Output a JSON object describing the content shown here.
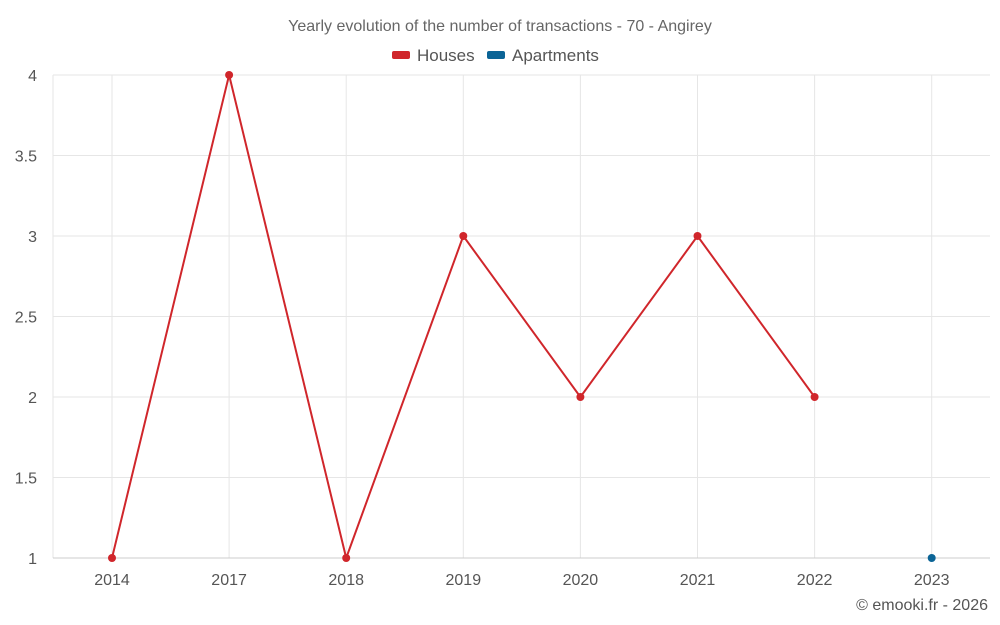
{
  "chart_data": {
    "type": "line",
    "title": "Yearly evolution of the number of transactions - 70 - Angirey",
    "categories": [
      "2014",
      "2017",
      "2018",
      "2019",
      "2020",
      "2021",
      "2022",
      "2023"
    ],
    "series": [
      {
        "name": "Houses",
        "color": "#d0262b",
        "values": [
          1,
          4,
          1,
          3,
          2,
          3,
          2,
          null
        ]
      },
      {
        "name": "Apartments",
        "color": "#0b6496",
        "values": [
          null,
          null,
          null,
          null,
          null,
          null,
          null,
          1
        ]
      }
    ],
    "ylim": [
      1,
      4
    ],
    "yticks": [
      "1",
      "1.5",
      "2",
      "2.5",
      "3",
      "3.5",
      "4"
    ],
    "grid": true,
    "legend_position": "top-center"
  },
  "credit": "© emooki.fr - 2026"
}
